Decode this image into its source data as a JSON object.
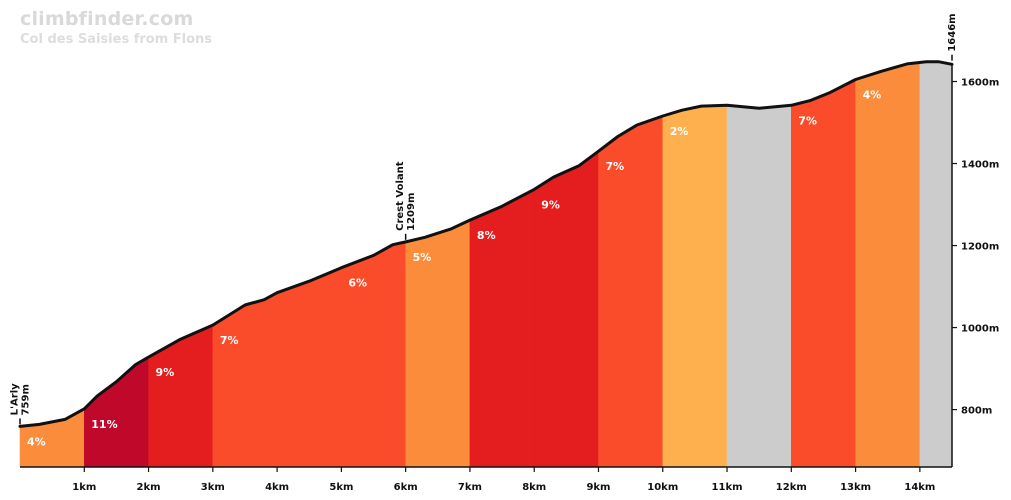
{
  "site": {
    "name": "climbfinder.com"
  },
  "chart_data": {
    "type": "area",
    "title": "Col des Saisies from Flons",
    "xlabel": "",
    "ylabel": "",
    "x_unit": "km",
    "y_unit": "m",
    "xlim": [
      0,
      14.5
    ],
    "ylim": [
      660,
      1750
    ],
    "x_ticks": [
      {
        "value": 1,
        "label": "1km"
      },
      {
        "value": 2,
        "label": "2km"
      },
      {
        "value": 3,
        "label": "3km"
      },
      {
        "value": 4,
        "label": "4km"
      },
      {
        "value": 5,
        "label": "5km"
      },
      {
        "value": 6,
        "label": "6km"
      },
      {
        "value": 7,
        "label": "7km"
      },
      {
        "value": 8,
        "label": "8km"
      },
      {
        "value": 9,
        "label": "9km"
      },
      {
        "value": 10,
        "label": "10km"
      },
      {
        "value": 11,
        "label": "11km"
      },
      {
        "value": 12,
        "label": "12km"
      },
      {
        "value": 13,
        "label": "13km"
      },
      {
        "value": 14,
        "label": "14km"
      }
    ],
    "y_ticks": [
      {
        "value": 800,
        "label": "800m"
      },
      {
        "value": 1000,
        "label": "1000m"
      },
      {
        "value": 1200,
        "label": "1200m"
      },
      {
        "value": 1400,
        "label": "1400m"
      },
      {
        "value": 1600,
        "label": "1600m"
      }
    ],
    "segments": [
      {
        "start": 0,
        "end": 1,
        "gradient": 4,
        "label": "4%",
        "color": "#fb8c3c"
      },
      {
        "start": 1,
        "end": 2,
        "gradient": 11,
        "label": "11%",
        "color": "#c0092a"
      },
      {
        "start": 2,
        "end": 3,
        "gradient": 9,
        "label": "9%",
        "color": "#e41d1e"
      },
      {
        "start": 3,
        "end": 5,
        "gradient": 7,
        "label": "7%",
        "color": "#fa4c2b"
      },
      {
        "start": 5,
        "end": 6,
        "gradient": 6,
        "label": "6%",
        "color": "#fa4c2b"
      },
      {
        "start": 6,
        "end": 7,
        "gradient": 5,
        "label": "5%",
        "color": "#fb8c3c"
      },
      {
        "start": 7,
        "end": 8,
        "gradient": 8,
        "label": "8%",
        "color": "#e41d1e"
      },
      {
        "start": 8,
        "end": 9,
        "gradient": 9,
        "label": "9%",
        "color": "#e41d1e"
      },
      {
        "start": 9,
        "end": 10,
        "gradient": 7,
        "label": "7%",
        "color": "#fa4c2b"
      },
      {
        "start": 10,
        "end": 11,
        "gradient": 2,
        "label": "2%",
        "color": "#fdb04d"
      },
      {
        "start": 11,
        "end": 12,
        "gradient": 0,
        "label": "",
        "color": "#cccccc"
      },
      {
        "start": 12,
        "end": 13,
        "gradient": 7,
        "label": "7%",
        "color": "#fa4c2b"
      },
      {
        "start": 13,
        "end": 14,
        "gradient": 4,
        "label": "4%",
        "color": "#fb8c3c"
      },
      {
        "start": 14,
        "end": 14.5,
        "gradient": 0,
        "label": "",
        "color": "#cccccc"
      }
    ],
    "profile": [
      [
        0,
        759
      ],
      [
        0.3,
        764
      ],
      [
        0.7,
        776
      ],
      [
        1,
        802
      ],
      [
        1.2,
        833
      ],
      [
        1.5,
        868
      ],
      [
        1.8,
        910
      ],
      [
        2,
        928
      ],
      [
        2.5,
        972
      ],
      [
        3,
        1006
      ],
      [
        3.5,
        1055
      ],
      [
        3.8,
        1068
      ],
      [
        4,
        1085
      ],
      [
        4.5,
        1113
      ],
      [
        5,
        1146
      ],
      [
        5.5,
        1176
      ],
      [
        5.8,
        1202
      ],
      [
        6,
        1209
      ],
      [
        6.3,
        1220
      ],
      [
        6.7,
        1240
      ],
      [
        7,
        1262
      ],
      [
        7.5,
        1296
      ],
      [
        8,
        1337
      ],
      [
        8.3,
        1367
      ],
      [
        8.7,
        1395
      ],
      [
        9,
        1430
      ],
      [
        9.3,
        1466
      ],
      [
        9.6,
        1494
      ],
      [
        10,
        1516
      ],
      [
        10.3,
        1530
      ],
      [
        10.6,
        1540
      ],
      [
        11,
        1542
      ],
      [
        11.5,
        1535
      ],
      [
        12,
        1542
      ],
      [
        12.3,
        1554
      ],
      [
        12.6,
        1573
      ],
      [
        13,
        1605
      ],
      [
        13.4,
        1625
      ],
      [
        13.8,
        1643
      ],
      [
        14.1,
        1648
      ],
      [
        14.3,
        1648
      ],
      [
        14.5,
        1642
      ]
    ],
    "annotations": [
      {
        "x": 0,
        "elevation": 759,
        "name": "L'Arly",
        "label": "759m"
      },
      {
        "x": 6,
        "elevation": 1209,
        "name": "Crest Volant",
        "label": "1209m"
      },
      {
        "x": 14.5,
        "elevation": 1646,
        "name": "",
        "label": "1646m"
      }
    ],
    "grid": false,
    "legend": "none"
  }
}
